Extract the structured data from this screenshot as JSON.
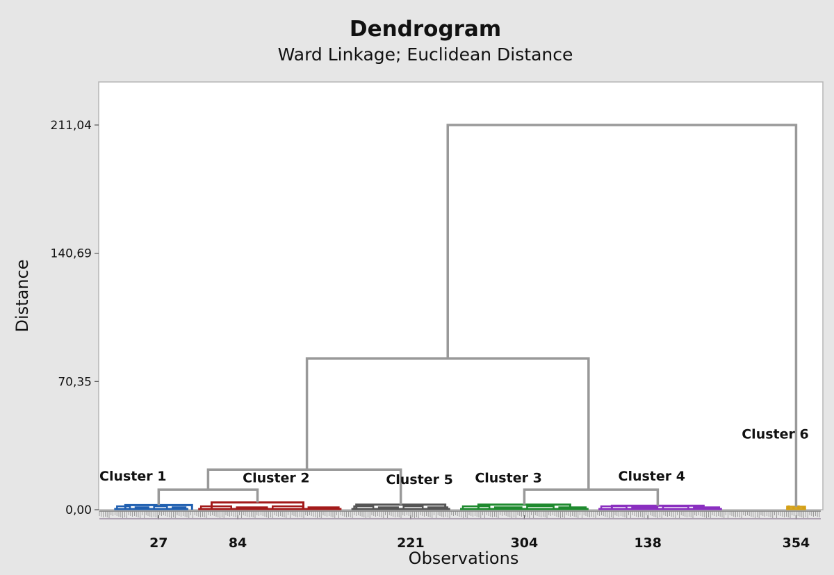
{
  "chart_data": {
    "type": "dendrogram",
    "title": "Dendrogram",
    "subtitle": "Ward Linkage; Euclidean Distance",
    "xlabel": "Observations",
    "ylabel": "Distance",
    "yticks": [
      "0,00",
      "70,35",
      "140,69",
      "211,04"
    ],
    "ytick_values": [
      0,
      70.35,
      140.69,
      211.04
    ],
    "ylim": [
      0,
      211.04
    ],
    "xticks": [
      "27",
      "84",
      "221",
      "304",
      "138",
      "354"
    ],
    "xtick_positions": [
      1.2,
      2.8,
      6.3,
      8.6,
      11.1,
      14.1
    ],
    "x_range": [
      0,
      14.6
    ],
    "clusters": [
      {
        "name": "Cluster 1",
        "color": "#1f5fb0",
        "range": [
          0.3,
          1.8
        ],
        "stem": 1.2,
        "top": 2.5
      },
      {
        "name": "Cluster 2",
        "color": "#a31a1a",
        "range": [
          2.0,
          4.9
        ],
        "stem": 3.2,
        "top": 4.0
      },
      {
        "name": "Cluster 5",
        "color": "#555555",
        "range": [
          5.1,
          7.1
        ],
        "stem": 6.1,
        "top": 2.8
      },
      {
        "name": "Cluster 3",
        "color": "#1e8a2e",
        "range": [
          7.3,
          9.9
        ],
        "stem": 8.6,
        "top": 2.8
      },
      {
        "name": "Cluster 4",
        "color": "#8a2fc0",
        "range": [
          10.1,
          12.6
        ],
        "stem": 11.3,
        "top": 2.2
      },
      {
        "name": "Cluster 6",
        "color": "#d4a017",
        "range": [
          13.9,
          14.3
        ],
        "stem": 14.1,
        "top": 1.6
      }
    ],
    "merges": [
      {
        "left_x": 1.2,
        "right_x": 3.2,
        "height": 11.0,
        "stem_x": 2.2
      },
      {
        "left_x": 2.2,
        "right_x": 6.1,
        "height": 22.0,
        "stem_x": 4.2
      },
      {
        "left_x": 8.6,
        "right_x": 11.3,
        "height": 11.0,
        "stem_x": 9.9
      },
      {
        "left_x": 4.2,
        "right_x": 9.9,
        "height": 83.0,
        "stem_x": 7.05
      },
      {
        "left_x": 7.05,
        "right_x": 14.1,
        "height": 211.04,
        "stem_x": 10.6
      }
    ],
    "link_color": "#999999",
    "plot_background": "#ffffff",
    "page_background": "#e6e6e6",
    "grid": false,
    "legend": "none"
  }
}
